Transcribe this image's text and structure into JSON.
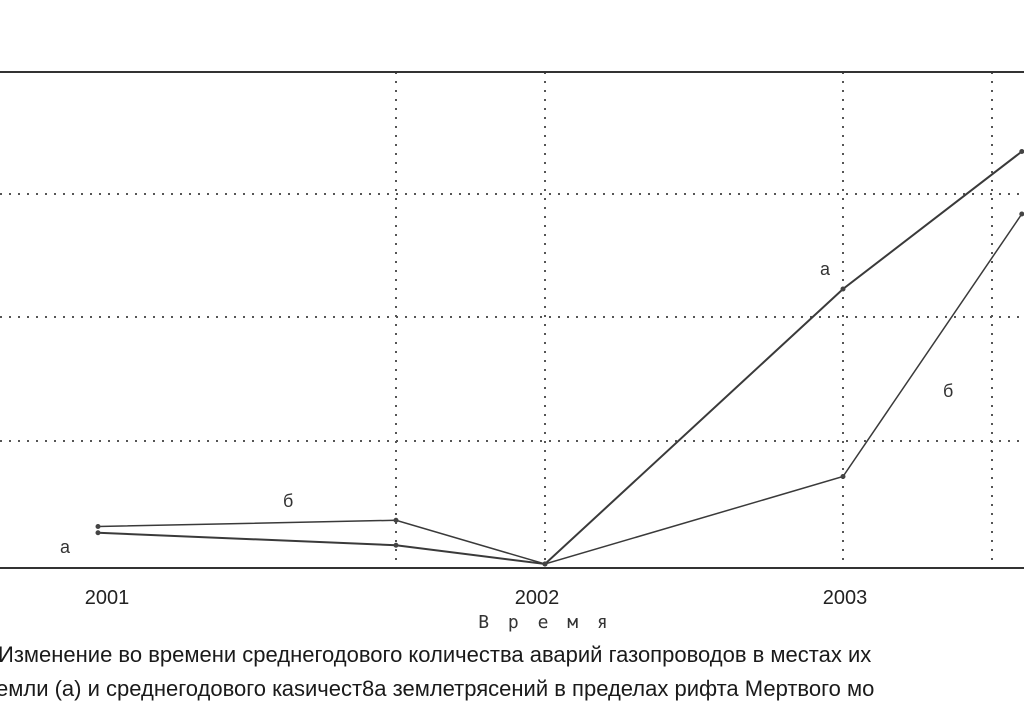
{
  "chart_data": {
    "type": "line",
    "xlabel": "В р е м я",
    "x_ticks": [
      "2001",
      "2002",
      "2003"
    ],
    "x": [
      2000.5,
      2001.5,
      2002.0,
      2003.0,
      2003.6
    ],
    "series": [
      {
        "name": "а",
        "values": [
          0.25,
          0.15,
          0.0,
          2.2,
          3.3
        ]
      },
      {
        "name": "б",
        "values": [
          0.3,
          0.35,
          0.0,
          0.7,
          2.8
        ]
      }
    ],
    "grid": true
  },
  "caption": {
    "line1": "Изменение во времени среднегодового количества аварий газопроводов в местах их",
    "line2": "емли (а) и среднегодового кasичест8a землетрясений в пределах рифта Мертвого мо"
  },
  "colors": {
    "line": "#3a3a3a",
    "grid": "#666666",
    "frame": "#333333"
  }
}
